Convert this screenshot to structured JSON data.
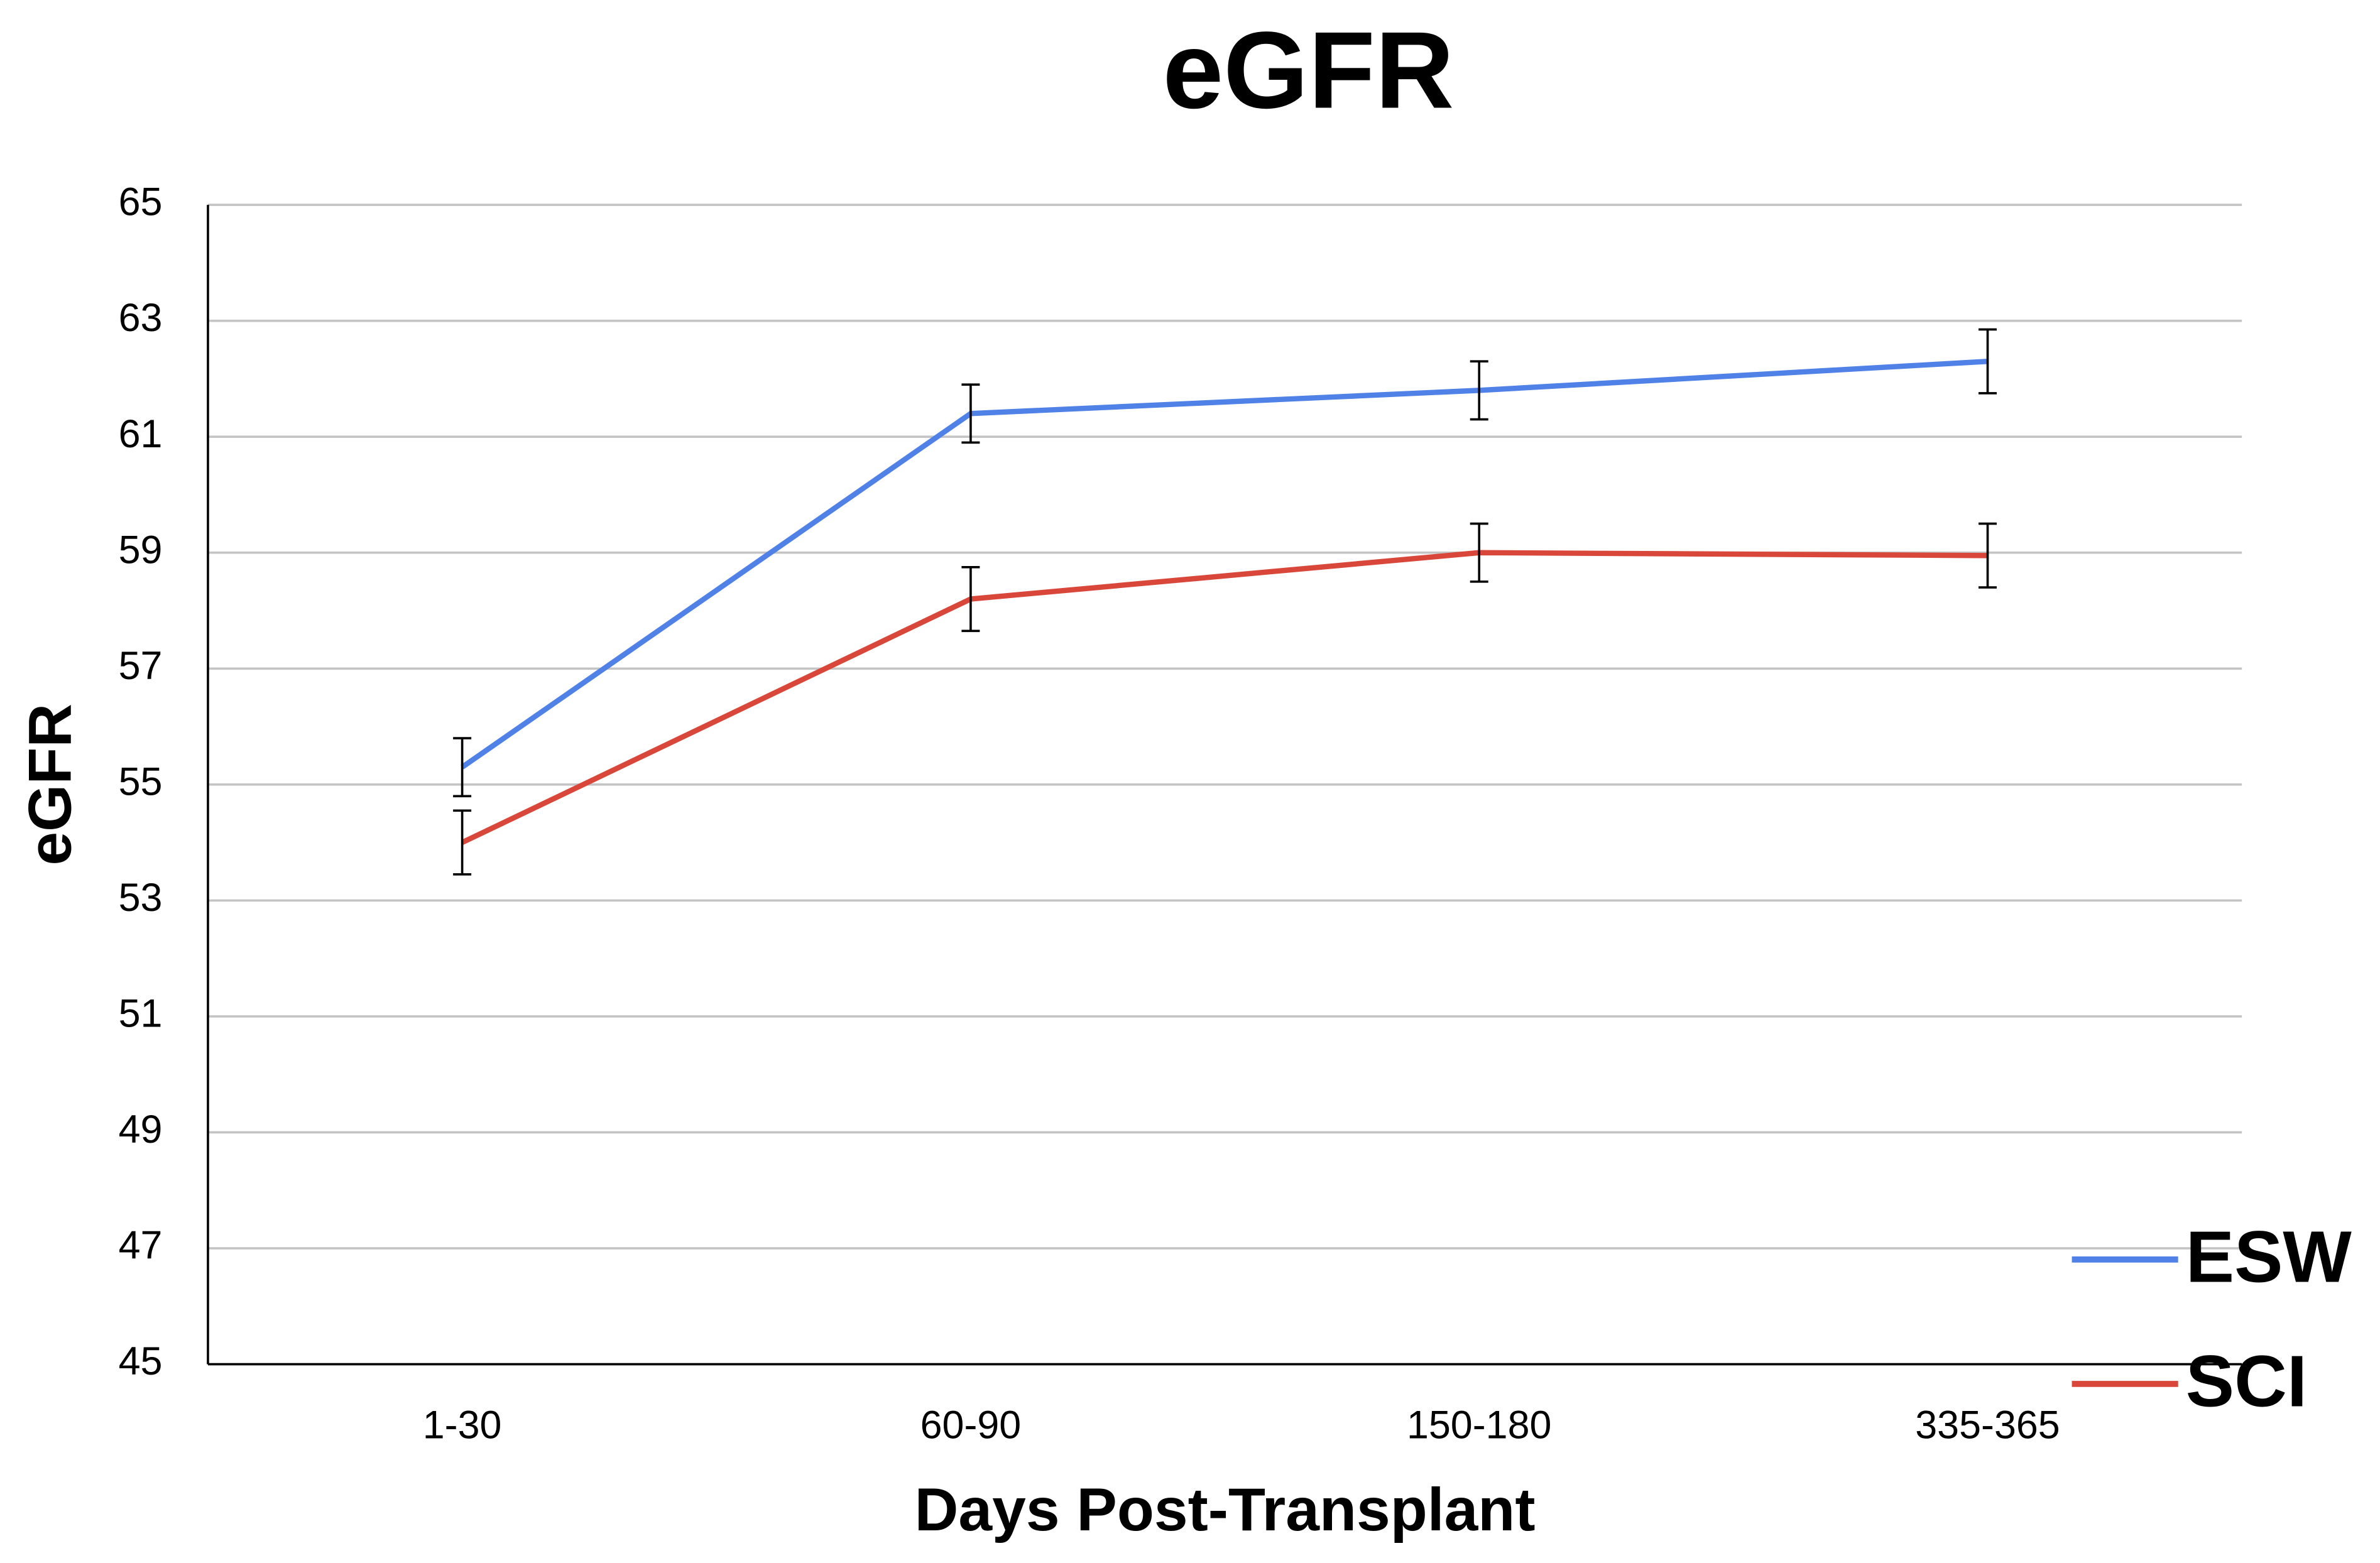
{
  "chart_data": {
    "type": "line",
    "title": "eGFR",
    "x_label": "Days Post-Transplant",
    "y_label": "eGFR",
    "categories": [
      "1-30",
      "60-90",
      "150-180",
      "335-365"
    ],
    "series": [
      {
        "name": "ESW",
        "color": "#4f81e6",
        "values": [
          55.3,
          61.4,
          61.8,
          62.3
        ],
        "errors": [
          0.5,
          0.5,
          0.5,
          0.55
        ]
      },
      {
        "name": "SCI",
        "color": "#d9473a",
        "values": [
          54.0,
          58.2,
          59.0,
          58.95
        ],
        "errors": [
          0.55,
          0.55,
          0.5,
          0.55
        ]
      }
    ],
    "ylim": [
      45,
      65
    ],
    "yticks": [
      45,
      47,
      49,
      51,
      53,
      55,
      57,
      59,
      61,
      63,
      65
    ],
    "grid": true,
    "legend": "lower right"
  }
}
